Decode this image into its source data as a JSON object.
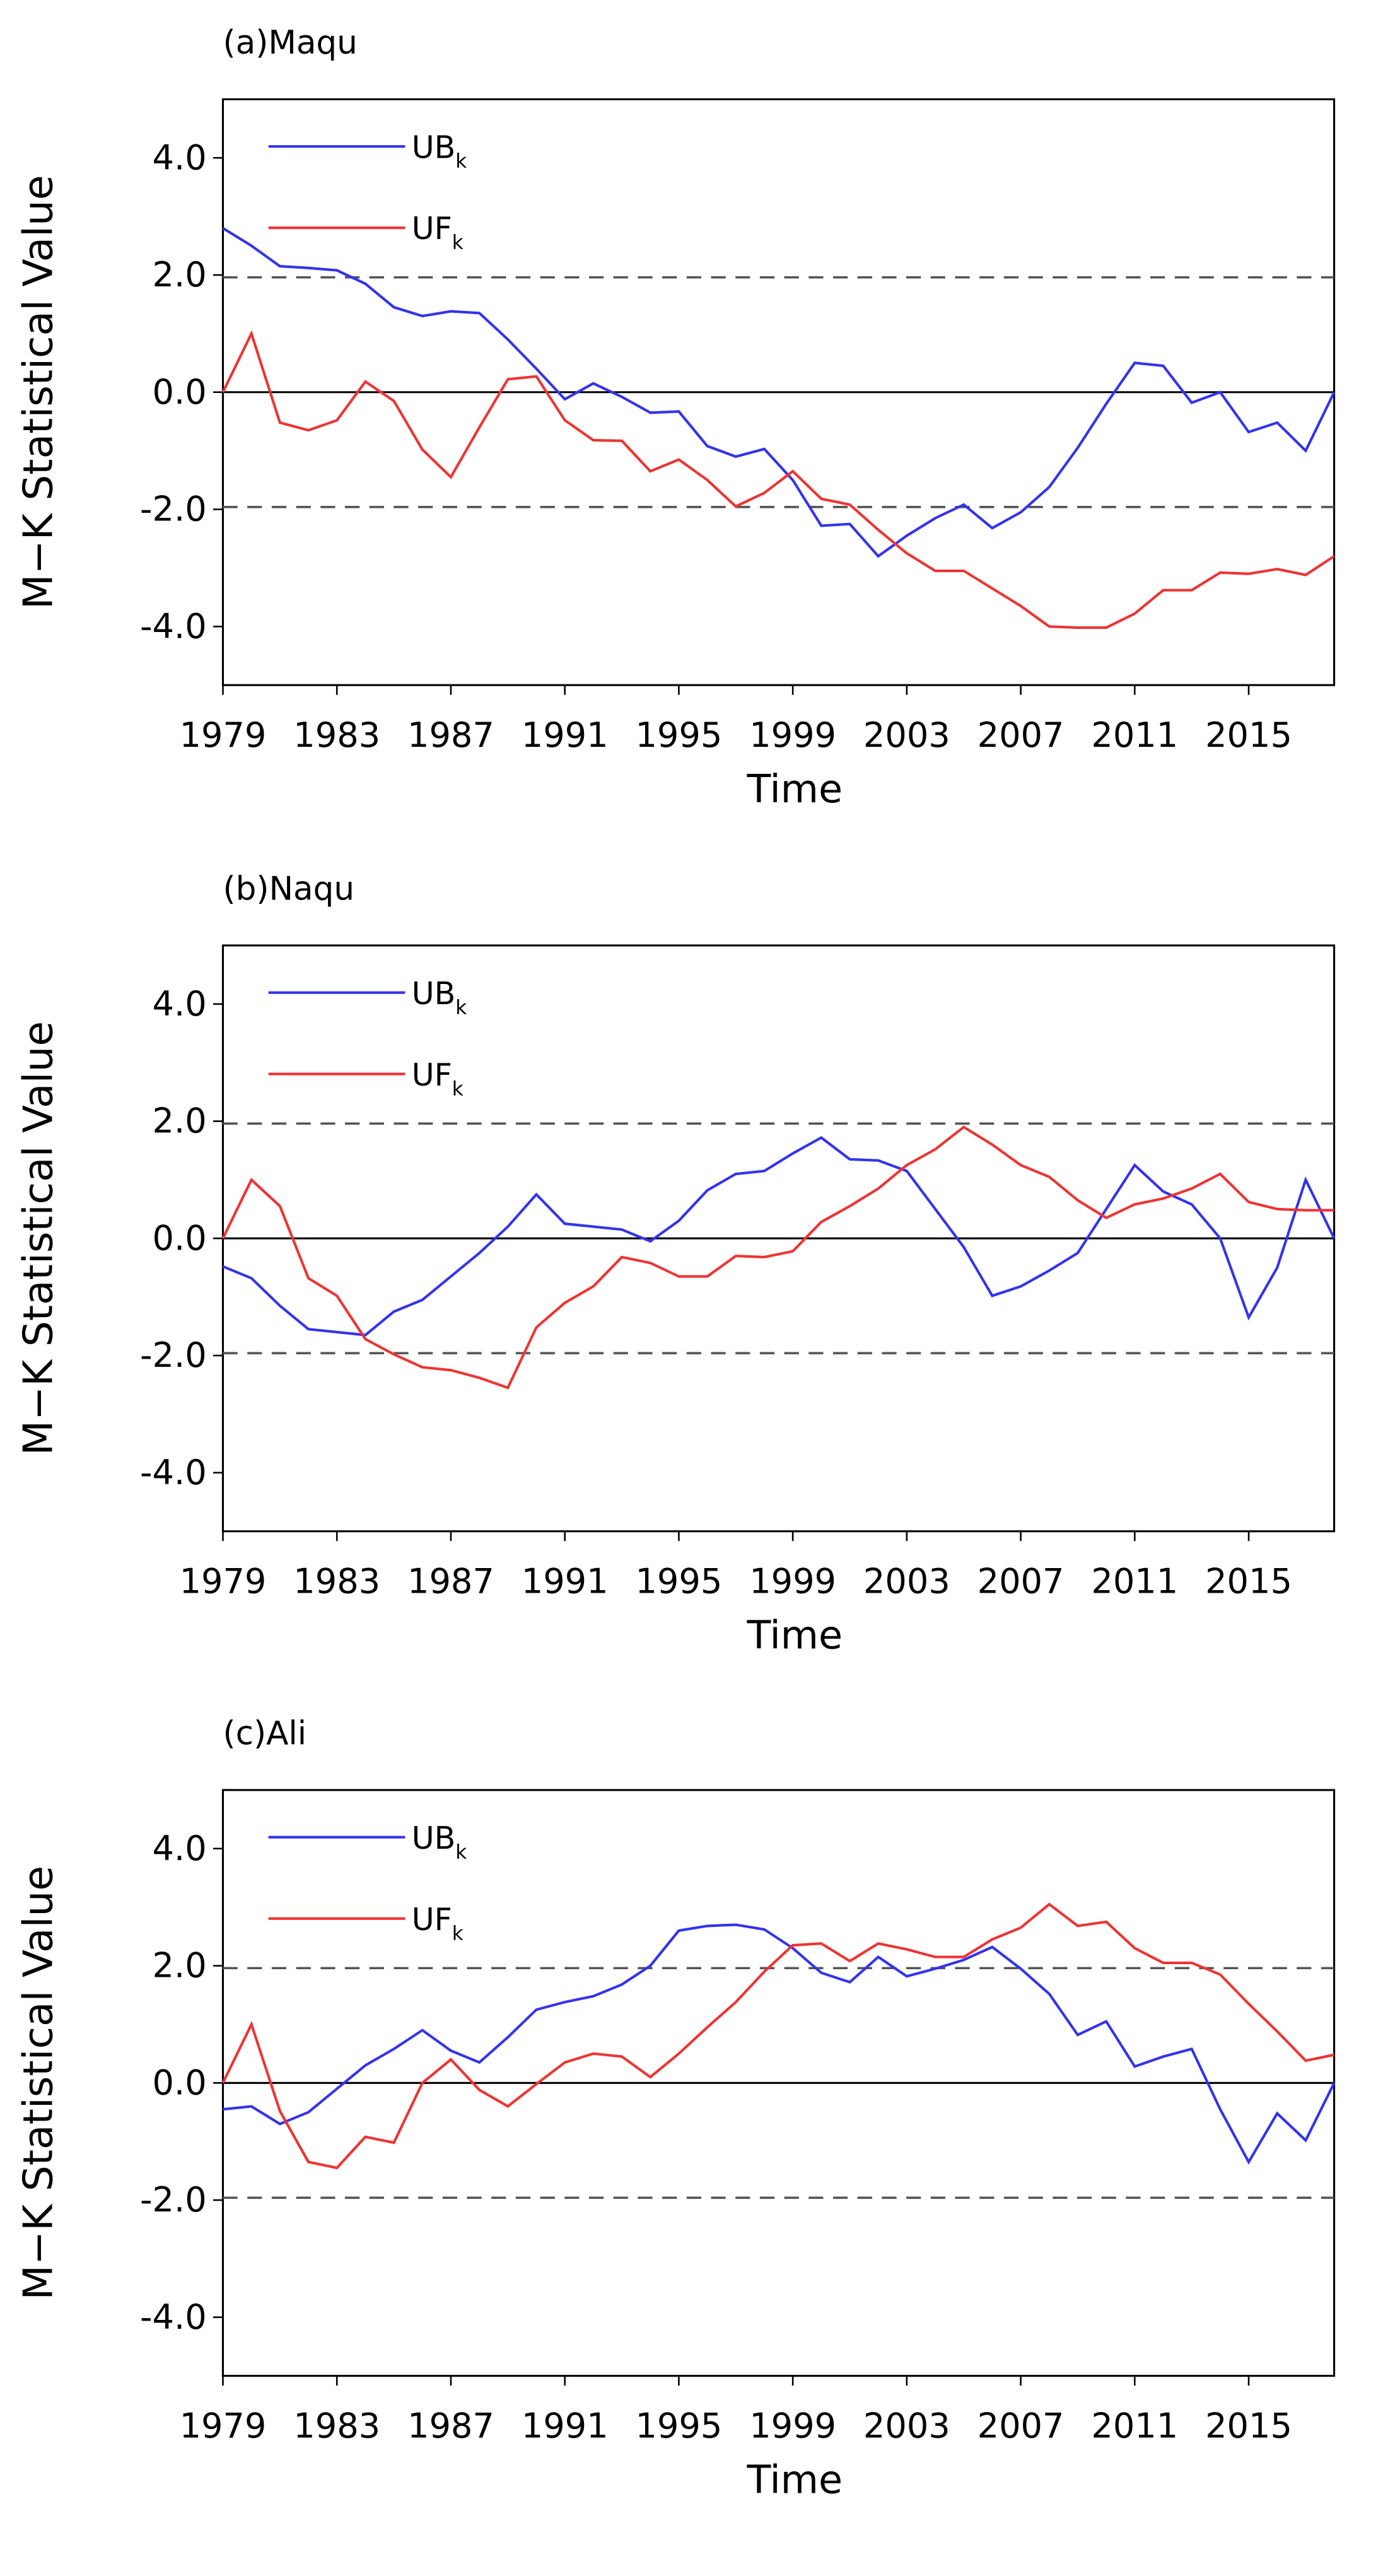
{
  "chart_data": [
    {
      "type": "line",
      "title": "(a)Maqu",
      "xlabel": "Time",
      "ylabel": "M−K Statistical Value",
      "x": [
        1979,
        1980,
        1981,
        1982,
        1983,
        1984,
        1985,
        1986,
        1987,
        1988,
        1989,
        1990,
        1991,
        1992,
        1993,
        1994,
        1995,
        1996,
        1997,
        1998,
        1999,
        2000,
        2001,
        2002,
        2003,
        2004,
        2005,
        2006,
        2007,
        2008,
        2009,
        2010,
        2011,
        2012,
        2013,
        2014,
        2015,
        2016,
        2017,
        2018
      ],
      "xlim": [
        1979,
        2018
      ],
      "xticks": [
        1979,
        1983,
        1987,
        1991,
        1995,
        1999,
        2003,
        2007,
        2011,
        2015
      ],
      "ylim": [
        -5,
        5
      ],
      "yticks": [
        {
          "value": -4,
          "label": "-4.0"
        },
        {
          "value": -2,
          "label": "-2.0"
        },
        {
          "value": 0,
          "label": "0.0"
        },
        {
          "value": 2,
          "label": "2.0"
        },
        {
          "value": 4,
          "label": "4.0"
        }
      ],
      "hlines": [
        1.96,
        -1.96
      ],
      "series": [
        {
          "name": "UB",
          "subscript": "k",
          "color": "#3333ee",
          "values": [
            2.8,
            2.5,
            2.15,
            2.12,
            2.08,
            1.85,
            1.45,
            1.3,
            1.38,
            1.35,
            0.9,
            0.4,
            -0.12,
            0.15,
            -0.08,
            -0.35,
            -0.33,
            -0.92,
            -1.1,
            -0.97,
            -1.5,
            -2.28,
            -2.25,
            -2.8,
            -2.45,
            -2.15,
            -1.92,
            -2.32,
            -2.05,
            -1.62,
            -0.95,
            -0.2,
            0.5,
            0.45,
            -0.18,
            0.0,
            -0.68,
            -0.52,
            -1.0,
            0.0
          ]
        },
        {
          "name": "UF",
          "subscript": "k",
          "color": "#ee3333",
          "values": [
            0,
            1.0,
            -0.52,
            -0.65,
            -0.48,
            0.18,
            -0.15,
            -0.98,
            -1.45,
            -0.6,
            0.22,
            0.27,
            -0.48,
            -0.82,
            -0.83,
            -1.35,
            -1.15,
            -1.5,
            -1.95,
            -1.72,
            -1.35,
            -1.82,
            -1.92,
            -2.35,
            -2.75,
            -3.05,
            -3.05,
            -3.35,
            -3.65,
            -4.0,
            -4.02,
            -4.02,
            -3.78,
            -3.38,
            -3.38,
            -3.08,
            -3.1,
            -3.02,
            -3.12,
            -2.8
          ]
        }
      ]
    },
    {
      "type": "line",
      "title": "(b)Naqu",
      "xlabel": "Time",
      "ylabel": "M−K Statistical Value",
      "x": [
        1979,
        1980,
        1981,
        1982,
        1983,
        1984,
        1985,
        1986,
        1987,
        1988,
        1989,
        1990,
        1991,
        1992,
        1993,
        1994,
        1995,
        1996,
        1997,
        1998,
        1999,
        2000,
        2001,
        2002,
        2003,
        2004,
        2005,
        2006,
        2007,
        2008,
        2009,
        2010,
        2011,
        2012,
        2013,
        2014,
        2015,
        2016,
        2017,
        2018
      ],
      "xlim": [
        1979,
        2018
      ],
      "xticks": [
        1979,
        1983,
        1987,
        1991,
        1995,
        1999,
        2003,
        2007,
        2011,
        2015
      ],
      "ylim": [
        -5,
        5
      ],
      "yticks": [
        {
          "value": -4,
          "label": "-4.0"
        },
        {
          "value": -2,
          "label": "-2.0"
        },
        {
          "value": 0,
          "label": "0.0"
        },
        {
          "value": 2,
          "label": "2.0"
        },
        {
          "value": 4,
          "label": "4.0"
        }
      ],
      "hlines": [
        1.96,
        -1.96
      ],
      "series": [
        {
          "name": "UB",
          "subscript": "k",
          "color": "#3333ee",
          "values": [
            -0.48,
            -0.68,
            -1.15,
            -1.55,
            -1.6,
            -1.65,
            -1.25,
            -1.05,
            -0.65,
            -0.25,
            0.2,
            0.75,
            0.25,
            0.2,
            0.15,
            -0.05,
            0.3,
            0.82,
            1.1,
            1.15,
            1.45,
            1.72,
            1.35,
            1.33,
            1.15,
            0.5,
            -0.15,
            -0.98,
            -0.82,
            -0.55,
            -0.25,
            0.5,
            1.25,
            0.8,
            0.58,
            0.0,
            -1.35,
            -0.5,
            1.0,
            0.0
          ]
        },
        {
          "name": "UF",
          "subscript": "k",
          "color": "#ee3333",
          "values": [
            0,
            1.0,
            0.55,
            -0.68,
            -0.98,
            -1.72,
            -1.98,
            -2.2,
            -2.25,
            -2.38,
            -2.55,
            -1.52,
            -1.1,
            -0.82,
            -0.32,
            -0.42,
            -0.65,
            -0.65,
            -0.3,
            -0.32,
            -0.22,
            0.28,
            0.55,
            0.85,
            1.25,
            1.52,
            1.9,
            1.6,
            1.25,
            1.05,
            0.65,
            0.35,
            0.58,
            0.68,
            0.85,
            1.1,
            0.62,
            0.5,
            0.48,
            0.48
          ]
        }
      ]
    },
    {
      "type": "line",
      "title": "(c)Ali",
      "xlabel": "Time",
      "ylabel": "M−K Statistical Value",
      "x": [
        1979,
        1980,
        1981,
        1982,
        1983,
        1984,
        1985,
        1986,
        1987,
        1988,
        1989,
        1990,
        1991,
        1992,
        1993,
        1994,
        1995,
        1996,
        1997,
        1998,
        1999,
        2000,
        2001,
        2002,
        2003,
        2004,
        2005,
        2006,
        2007,
        2008,
        2009,
        2010,
        2011,
        2012,
        2013,
        2014,
        2015,
        2016,
        2017,
        2018
      ],
      "xlim": [
        1979,
        2018
      ],
      "xticks": [
        1979,
        1983,
        1987,
        1991,
        1995,
        1999,
        2003,
        2007,
        2011,
        2015
      ],
      "ylim": [
        -5,
        5
      ],
      "yticks": [
        {
          "value": -4,
          "label": "-4.0"
        },
        {
          "value": -2,
          "label": "-2.0"
        },
        {
          "value": 0,
          "label": "0.0"
        },
        {
          "value": 2,
          "label": "2.0"
        },
        {
          "value": 4,
          "label": "4.0"
        }
      ],
      "hlines": [
        1.96,
        -1.96
      ],
      "series": [
        {
          "name": "UB",
          "subscript": "k",
          "color": "#3333ee",
          "values": [
            -0.45,
            -0.4,
            -0.7,
            -0.5,
            -0.1,
            0.3,
            0.58,
            0.9,
            0.55,
            0.35,
            0.78,
            1.25,
            1.38,
            1.48,
            1.68,
            2.0,
            2.6,
            2.68,
            2.7,
            2.62,
            2.3,
            1.88,
            1.72,
            2.15,
            1.82,
            1.95,
            2.1,
            2.32,
            1.95,
            1.52,
            0.82,
            1.05,
            0.28,
            0.45,
            0.58,
            -0.45,
            -1.35,
            -0.52,
            -0.98,
            0.0
          ]
        },
        {
          "name": "UF",
          "subscript": "k",
          "color": "#ee3333",
          "values": [
            0,
            1.0,
            -0.48,
            -1.35,
            -1.45,
            -0.92,
            -1.02,
            0.0,
            0.4,
            -0.12,
            -0.4,
            -0.02,
            0.35,
            0.5,
            0.45,
            0.1,
            0.5,
            0.95,
            1.38,
            1.9,
            2.35,
            2.38,
            2.08,
            2.38,
            2.28,
            2.15,
            2.15,
            2.45,
            2.65,
            3.05,
            2.68,
            2.75,
            2.3,
            2.05,
            2.05,
            1.85,
            1.35,
            0.88,
            0.38,
            0.48
          ]
        }
      ]
    }
  ]
}
